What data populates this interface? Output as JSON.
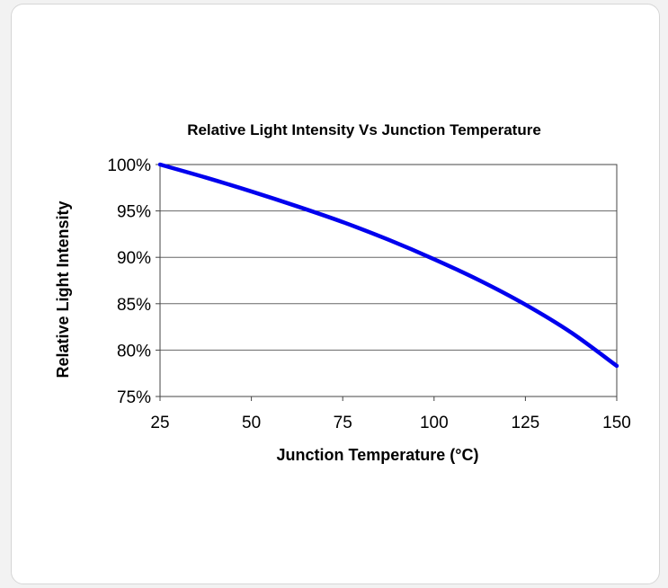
{
  "chart_data": {
    "type": "line",
    "title": "Relative Light Intensity Vs Junction Temperature",
    "xlabel": "Junction Temperature (°C)",
    "ylabel": "Relative Light Intensity",
    "xlim": [
      25,
      150
    ],
    "ylim": [
      75,
      100
    ],
    "x_ticks": [
      25,
      50,
      75,
      100,
      125,
      150
    ],
    "x_tick_labels": [
      "25",
      "50",
      "75",
      "100",
      "125",
      "150"
    ],
    "y_ticks": [
      75,
      80,
      85,
      90,
      95,
      100
    ],
    "y_tick_labels": [
      "75%",
      "80%",
      "85%",
      "90%",
      "95%",
      "100%"
    ],
    "grid": "horizontal",
    "series": [
      {
        "color": "#0000ee",
        "x": [
          25,
          37.5,
          50,
          62.5,
          75,
          87.5,
          100,
          112.5,
          125,
          137.5,
          150
        ],
        "y": [
          100,
          98.6,
          97.1,
          95.5,
          93.8,
          91.9,
          89.8,
          87.5,
          84.9,
          81.9,
          78.3
        ]
      }
    ]
  }
}
